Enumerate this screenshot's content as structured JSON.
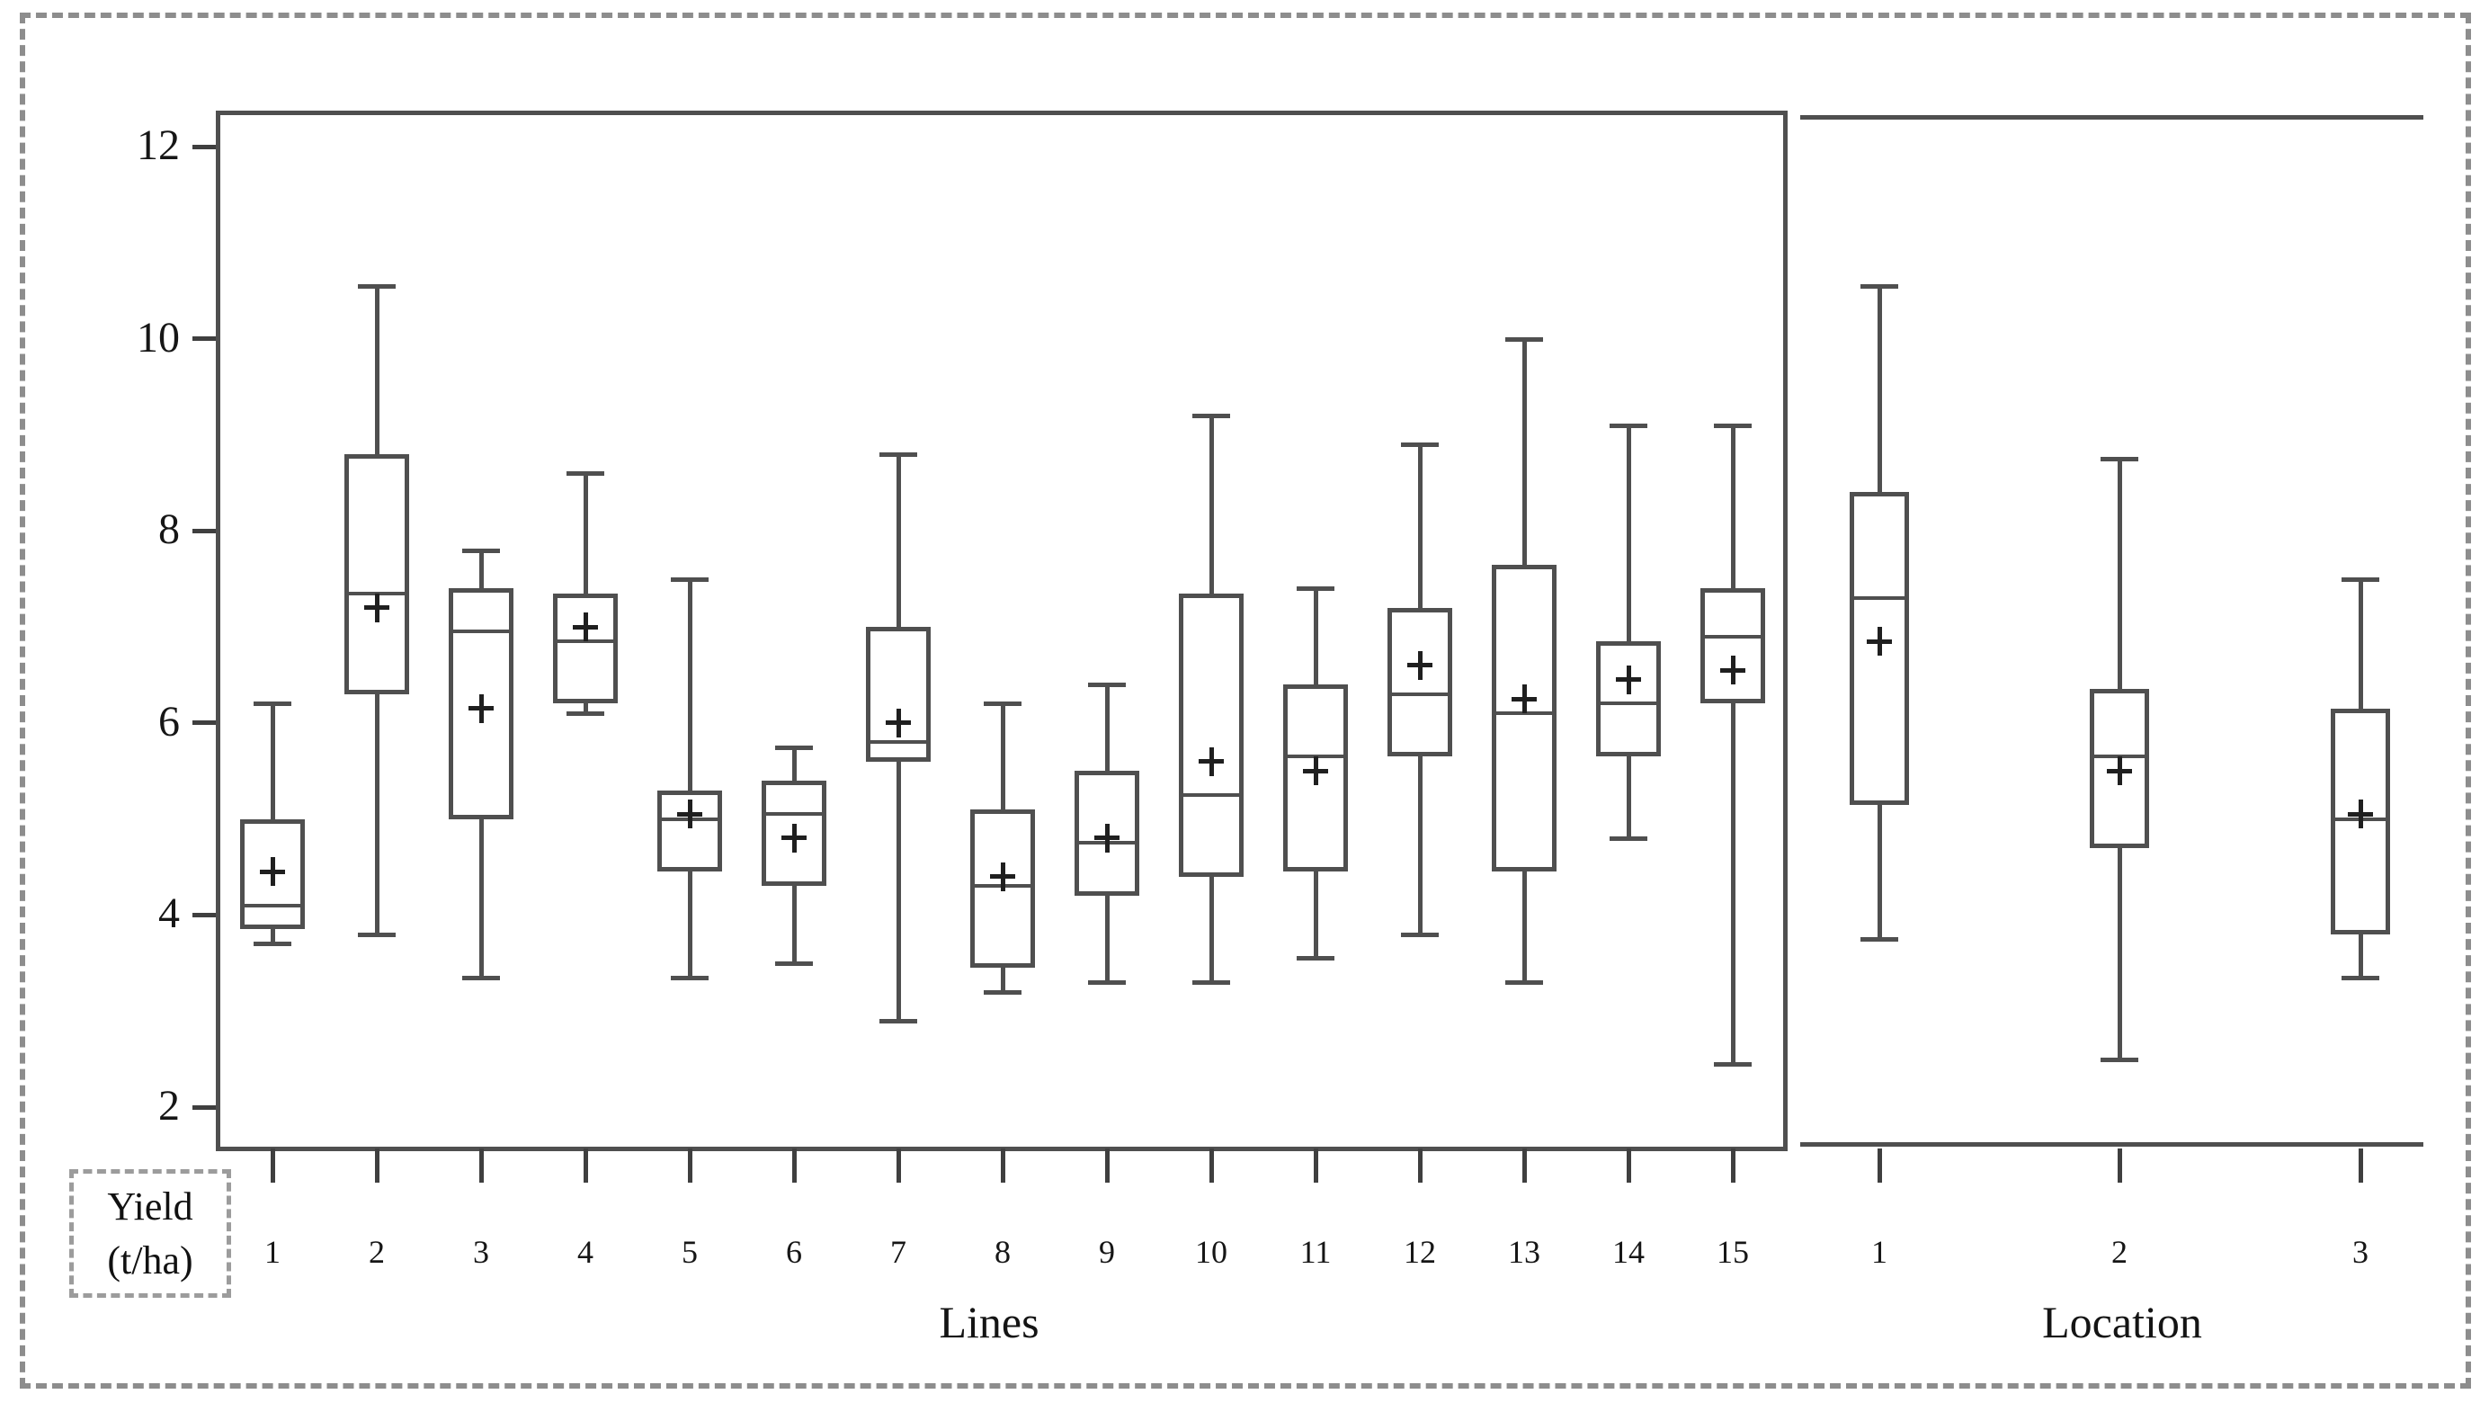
{
  "figure": {
    "y_axis_unit_label_line1": "Yield",
    "y_axis_unit_label_line2": "(t/ha)"
  },
  "chart_data": {
    "type": "boxplot",
    "title": "",
    "ylabel": "Yield (t/ha)",
    "ylim": [
      1.59,
      12.37
    ],
    "yticks": [
      12,
      10,
      8,
      6,
      4,
      2
    ],
    "grid": false,
    "legend": "none",
    "panels": [
      {
        "xlabel": "Lines",
        "categories": [
          "1",
          "2",
          "3",
          "4",
          "5",
          "6",
          "7",
          "8",
          "9",
          "10",
          "11",
          "12",
          "13",
          "14",
          "15"
        ],
        "boxes": [
          {
            "min": 3.7,
            "q1": 3.85,
            "median": 4.1,
            "mean": 4.45,
            "q3": 5.0,
            "max": 6.2
          },
          {
            "min": 3.8,
            "q1": 6.3,
            "median": 7.35,
            "mean": 7.2,
            "q3": 8.8,
            "max": 10.55
          },
          {
            "min": 3.35,
            "q1": 5.0,
            "median": 6.95,
            "mean": 6.15,
            "q3": 7.4,
            "max": 7.8
          },
          {
            "min": 6.1,
            "q1": 6.2,
            "median": 6.85,
            "mean": 7.0,
            "q3": 7.35,
            "max": 8.6
          },
          {
            "min": 3.35,
            "q1": 4.45,
            "median": 5.0,
            "mean": 5.05,
            "q3": 5.3,
            "max": 7.5
          },
          {
            "min": 3.5,
            "q1": 4.3,
            "median": 5.05,
            "mean": 4.8,
            "q3": 5.4,
            "max": 5.75
          },
          {
            "min": 2.9,
            "q1": 5.6,
            "median": 5.8,
            "mean": 6.0,
            "q3": 7.0,
            "max": 8.8
          },
          {
            "min": 3.2,
            "q1": 3.45,
            "median": 4.3,
            "mean": 4.4,
            "q3": 5.1,
            "max": 6.2
          },
          {
            "min": 3.3,
            "q1": 4.2,
            "median": 4.75,
            "mean": 4.8,
            "q3": 5.5,
            "max": 6.4
          },
          {
            "min": 3.3,
            "q1": 4.4,
            "median": 5.25,
            "mean": 5.6,
            "q3": 7.35,
            "max": 9.2
          },
          {
            "min": 3.55,
            "q1": 4.45,
            "median": 5.65,
            "mean": 5.5,
            "q3": 6.4,
            "max": 7.4
          },
          {
            "min": 3.8,
            "q1": 5.65,
            "median": 6.3,
            "mean": 6.6,
            "q3": 7.2,
            "max": 8.9
          },
          {
            "min": 3.3,
            "q1": 4.45,
            "median": 6.1,
            "mean": 6.25,
            "q3": 7.65,
            "max": 10.0
          },
          {
            "min": 4.8,
            "q1": 5.65,
            "median": 6.2,
            "mean": 6.45,
            "q3": 6.85,
            "max": 9.1
          },
          {
            "min": 2.45,
            "q1": 6.2,
            "median": 6.9,
            "mean": 6.55,
            "q3": 7.4,
            "max": 9.1
          }
        ]
      },
      {
        "xlabel": "Location",
        "categories": [
          "1",
          "2",
          "3"
        ],
        "boxes": [
          {
            "min": 3.75,
            "q1": 5.15,
            "median": 7.3,
            "mean": 6.85,
            "q3": 8.4,
            "max": 10.55
          },
          {
            "min": 2.5,
            "q1": 4.7,
            "median": 5.65,
            "mean": 5.5,
            "q3": 6.35,
            "max": 8.75
          },
          {
            "min": 3.35,
            "q1": 3.8,
            "median": 5.0,
            "mean": 5.05,
            "q3": 6.15,
            "max": 7.5
          }
        ]
      }
    ]
  }
}
